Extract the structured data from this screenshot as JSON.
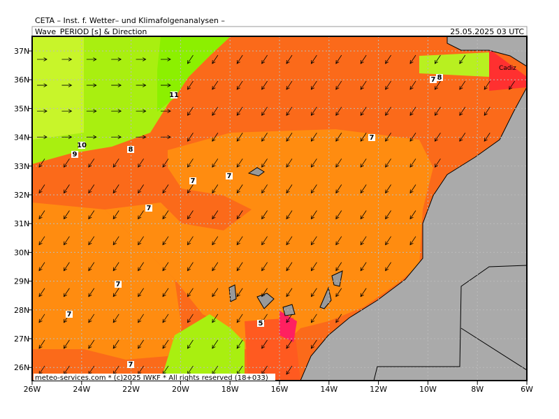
{
  "header": {
    "title": "CETA – Inst. f. Wetter– und Klimafolgenanalysen –",
    "parameter": "Wave_PERIOD [s] & Direction",
    "valid": "25.05.2025 03 UTC"
  },
  "map": {
    "lat_labels": [
      "37N",
      "36N",
      "35N",
      "34N",
      "33N",
      "32N",
      "31N",
      "30N",
      "29N",
      "28N",
      "27N",
      "26N"
    ],
    "lon_labels": [
      "26W",
      "24W",
      "22W",
      "20W",
      "18W",
      "16W",
      "14W",
      "12W",
      "10W",
      "8W",
      "6W"
    ],
    "place_labels": [
      "Cadiz"
    ],
    "contour_labels": [
      "11",
      "10",
      "9",
      "8",
      "7",
      "7",
      "7",
      "7",
      "7",
      "7",
      "7",
      "7",
      "8",
      "5"
    ],
    "footer": "meteo-services.com * (c)2025 IWKF * All rights reserved (18+033)"
  }
}
